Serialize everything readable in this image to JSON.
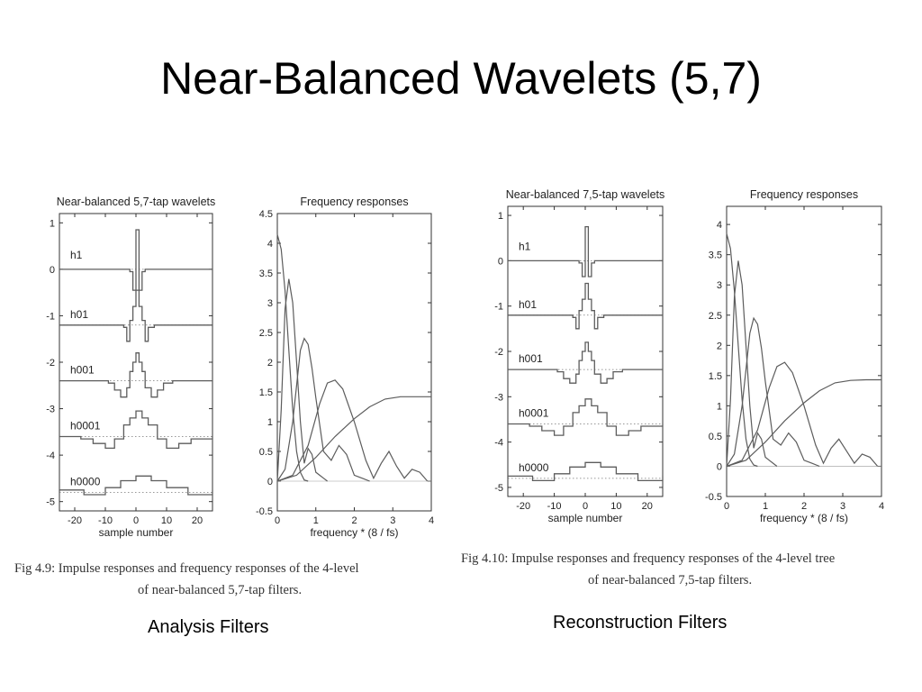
{
  "slide": {
    "title": "Near-Balanced Wavelets (5,7)"
  },
  "colors": {
    "trace": "#5c5c5c",
    "axis": "#333333",
    "background": "#ffffff"
  },
  "figures": [
    {
      "caption_fig": "Fig 4.9:",
      "caption_line1": "Impulse responses and frequency responses of the 4-level",
      "caption_line2": "of near-balanced 5,7-tap filters.",
      "label": "Analysis Filters"
    },
    {
      "caption_fig": "Fig 4.10:",
      "caption_line1": "Impulse responses and frequency responses of the 4-level tree",
      "caption_line2": "of near-balanced 7,5-tap filters.",
      "label": "Reconstruction Filters"
    }
  ],
  "chart_data": [
    {
      "type": "line",
      "title": "Near-balanced 5,7-tap wavelets",
      "xlabel": "sample number",
      "ylabel": "",
      "xlim": [
        -25,
        25
      ],
      "ylim": [
        -5.2,
        1.2
      ],
      "xticks": [
        -20,
        -10,
        0,
        10,
        20
      ],
      "yticks": [
        1,
        0,
        -1,
        -2,
        -3,
        -4,
        -5
      ],
      "trace_labels": [
        "h1",
        "h01",
        "h001",
        "h0001",
        "h0000"
      ],
      "series": [
        {
          "name": "h1",
          "baseline": 0,
          "x": [
            -3,
            -2,
            -1,
            0,
            1,
            2,
            3
          ],
          "y": [
            0,
            -0.05,
            -0.45,
            0.85,
            -0.45,
            -0.05,
            0
          ]
        },
        {
          "name": "h01",
          "baseline": -1.2,
          "x": [
            -6,
            -4,
            -3,
            -2,
            -1,
            0,
            1,
            2,
            3,
            4,
            6
          ],
          "y": [
            -1.2,
            -1.25,
            -1.55,
            -1.1,
            -0.8,
            -0.45,
            -0.8,
            -1.1,
            -1.55,
            -1.25,
            -1.2
          ]
        },
        {
          "name": "h001",
          "baseline": -2.4,
          "x": [
            -12,
            -9,
            -7,
            -5,
            -3,
            -2,
            -1,
            0,
            1,
            2,
            3,
            5,
            7,
            9,
            12
          ],
          "y": [
            -2.4,
            -2.45,
            -2.6,
            -2.75,
            -2.55,
            -2.2,
            -2.0,
            -1.8,
            -2.0,
            -2.2,
            -2.55,
            -2.75,
            -2.6,
            -2.45,
            -2.4
          ]
        },
        {
          "name": "h0001",
          "baseline": -3.6,
          "x": [
            -25,
            -18,
            -14,
            -10,
            -7,
            -4,
            -2,
            0,
            2,
            4,
            7,
            10,
            14,
            18,
            25
          ],
          "y": [
            -3.6,
            -3.65,
            -3.75,
            -3.85,
            -3.65,
            -3.35,
            -3.2,
            -3.05,
            -3.2,
            -3.35,
            -3.65,
            -3.85,
            -3.75,
            -3.65,
            -3.6
          ]
        },
        {
          "name": "h0000",
          "baseline": -4.8,
          "x": [
            -25,
            -17,
            -10,
            -5,
            0,
            5,
            10,
            17,
            25
          ],
          "y": [
            -4.75,
            -4.85,
            -4.7,
            -4.55,
            -4.45,
            -4.55,
            -4.7,
            -4.85,
            -4.75
          ]
        }
      ]
    },
    {
      "type": "line",
      "title": "Frequency responses",
      "xlabel": "frequency * (8 / fs)",
      "ylabel": "",
      "xlim": [
        0,
        4
      ],
      "ylim": [
        -0.5,
        4.5
      ],
      "xticks": [
        0,
        1,
        2,
        3,
        4
      ],
      "yticks": [
        4.5,
        4,
        3.5,
        3,
        2.5,
        2,
        1.5,
        1,
        0.5,
        0,
        -0.5
      ],
      "series": [
        {
          "name": "h0000",
          "x": [
            0,
            0.1,
            0.2,
            0.3,
            0.4,
            0.5,
            0.6,
            0.7,
            0.8
          ],
          "y": [
            4.15,
            3.9,
            3.2,
            2.2,
            1.2,
            0.5,
            0.15,
            0.02,
            0
          ]
        },
        {
          "name": "h0001",
          "x": [
            0,
            0.1,
            0.2,
            0.3,
            0.4,
            0.5,
            0.6,
            0.7,
            0.8,
            0.9,
            1.0,
            1.1,
            1.2,
            1.3
          ],
          "y": [
            0,
            1.2,
            2.9,
            3.4,
            3.0,
            2.0,
            1.0,
            0.3,
            0.55,
            0.45,
            0.15,
            0.1,
            0.05,
            0
          ]
        },
        {
          "name": "h001",
          "x": [
            0,
            0.2,
            0.4,
            0.6,
            0.7,
            0.8,
            0.9,
            1.0,
            1.2,
            1.4,
            1.6,
            1.8,
            2.0,
            2.2,
            2.4
          ],
          "y": [
            0,
            0.2,
            1.0,
            2.2,
            2.4,
            2.3,
            1.9,
            1.4,
            0.5,
            0.35,
            0.6,
            0.45,
            0.1,
            0.05,
            0
          ]
        },
        {
          "name": "h01",
          "x": [
            0,
            0.4,
            0.8,
            1.1,
            1.3,
            1.5,
            1.7,
            2.0,
            2.3,
            2.5,
            2.7,
            2.9,
            3.1,
            3.3,
            3.5,
            3.7,
            3.9
          ],
          "y": [
            0,
            0.1,
            0.6,
            1.3,
            1.65,
            1.7,
            1.55,
            1.0,
            0.35,
            0.05,
            0.3,
            0.5,
            0.25,
            0.05,
            0.2,
            0.15,
            0
          ]
        },
        {
          "name": "h1",
          "x": [
            0,
            0.5,
            1.0,
            1.5,
            2.0,
            2.4,
            2.8,
            3.2,
            3.6,
            4.0
          ],
          "y": [
            0,
            0.1,
            0.4,
            0.75,
            1.05,
            1.25,
            1.38,
            1.42,
            1.42,
            1.42
          ]
        }
      ]
    },
    {
      "type": "line",
      "title": "Near-balanced 7,5-tap wavelets",
      "xlabel": "sample number",
      "ylabel": "",
      "xlim": [
        -25,
        25
      ],
      "ylim": [
        -5.2,
        1.2
      ],
      "xticks": [
        -20,
        -10,
        0,
        10,
        20
      ],
      "yticks": [
        1,
        0,
        -1,
        -2,
        -3,
        -4,
        -5
      ],
      "trace_labels": [
        "h1",
        "h01",
        "h001",
        "h0001",
        "h0000"
      ],
      "series": [
        {
          "name": "h1",
          "baseline": 0,
          "x": [
            -3,
            -2,
            -1,
            0,
            1,
            2,
            3
          ],
          "y": [
            0,
            -0.05,
            -0.35,
            0.75,
            -0.35,
            -0.05,
            0
          ]
        },
        {
          "name": "h01",
          "baseline": -1.2,
          "x": [
            -6,
            -4,
            -3,
            -2,
            -1,
            0,
            1,
            2,
            3,
            4,
            6
          ],
          "y": [
            -1.2,
            -1.25,
            -1.5,
            -1.1,
            -0.85,
            -0.5,
            -0.85,
            -1.1,
            -1.5,
            -1.25,
            -1.2
          ]
        },
        {
          "name": "h001",
          "baseline": -2.4,
          "x": [
            -12,
            -9,
            -7,
            -5,
            -3,
            -2,
            -1,
            0,
            1,
            2,
            3,
            5,
            7,
            9,
            12
          ],
          "y": [
            -2.4,
            -2.45,
            -2.6,
            -2.7,
            -2.5,
            -2.2,
            -2.0,
            -1.8,
            -2.0,
            -2.2,
            -2.5,
            -2.7,
            -2.6,
            -2.45,
            -2.4
          ]
        },
        {
          "name": "h0001",
          "baseline": -3.6,
          "x": [
            -25,
            -18,
            -14,
            -10,
            -7,
            -4,
            -2,
            0,
            2,
            4,
            7,
            10,
            14,
            18,
            25
          ],
          "y": [
            -3.6,
            -3.65,
            -3.75,
            -3.85,
            -3.65,
            -3.35,
            -3.2,
            -3.05,
            -3.2,
            -3.35,
            -3.65,
            -3.85,
            -3.75,
            -3.65,
            -3.6
          ]
        },
        {
          "name": "h0000",
          "baseline": -4.8,
          "x": [
            -25,
            -17,
            -10,
            -5,
            0,
            5,
            10,
            17,
            25
          ],
          "y": [
            -4.75,
            -4.85,
            -4.7,
            -4.55,
            -4.45,
            -4.55,
            -4.7,
            -4.85,
            -4.75
          ]
        }
      ]
    },
    {
      "type": "line",
      "title": "Frequency responses",
      "xlabel": "frequency * (8 / fs)",
      "ylabel": "",
      "xlim": [
        0,
        4
      ],
      "ylim": [
        -0.5,
        4.3
      ],
      "xticks": [
        0,
        1,
        2,
        3,
        4
      ],
      "yticks": [
        4,
        3.5,
        3,
        2.5,
        2,
        1.5,
        1,
        0.5,
        0,
        -0.5
      ],
      "series": [
        {
          "name": "h0000",
          "x": [
            0,
            0.1,
            0.2,
            0.3,
            0.4,
            0.5,
            0.6,
            0.7,
            0.8
          ],
          "y": [
            3.85,
            3.6,
            2.9,
            2.0,
            1.1,
            0.45,
            0.12,
            0.02,
            0
          ]
        },
        {
          "name": "h0001",
          "x": [
            0,
            0.1,
            0.2,
            0.3,
            0.4,
            0.5,
            0.6,
            0.7,
            0.8,
            0.9,
            1.0,
            1.1,
            1.2,
            1.3
          ],
          "y": [
            0,
            1.1,
            2.8,
            3.4,
            3.0,
            2.0,
            1.0,
            0.3,
            0.55,
            0.45,
            0.15,
            0.1,
            0.05,
            0
          ]
        },
        {
          "name": "h001",
          "x": [
            0,
            0.2,
            0.4,
            0.6,
            0.7,
            0.8,
            0.9,
            1.0,
            1.2,
            1.4,
            1.6,
            1.8,
            2.0,
            2.2,
            2.4
          ],
          "y": [
            0,
            0.2,
            1.0,
            2.2,
            2.45,
            2.35,
            1.95,
            1.4,
            0.45,
            0.35,
            0.55,
            0.4,
            0.1,
            0.05,
            0
          ]
        },
        {
          "name": "h01",
          "x": [
            0,
            0.4,
            0.8,
            1.1,
            1.3,
            1.5,
            1.7,
            2.0,
            2.3,
            2.5,
            2.7,
            2.9,
            3.1,
            3.3,
            3.5,
            3.7,
            3.9
          ],
          "y": [
            0,
            0.1,
            0.6,
            1.3,
            1.65,
            1.72,
            1.55,
            1.0,
            0.35,
            0.05,
            0.3,
            0.45,
            0.25,
            0.05,
            0.2,
            0.15,
            0
          ]
        },
        {
          "name": "h1",
          "x": [
            0,
            0.5,
            1.0,
            1.5,
            2.0,
            2.4,
            2.8,
            3.2,
            3.6,
            4.0
          ],
          "y": [
            0,
            0.1,
            0.4,
            0.75,
            1.05,
            1.25,
            1.38,
            1.42,
            1.43,
            1.43
          ]
        }
      ]
    }
  ]
}
